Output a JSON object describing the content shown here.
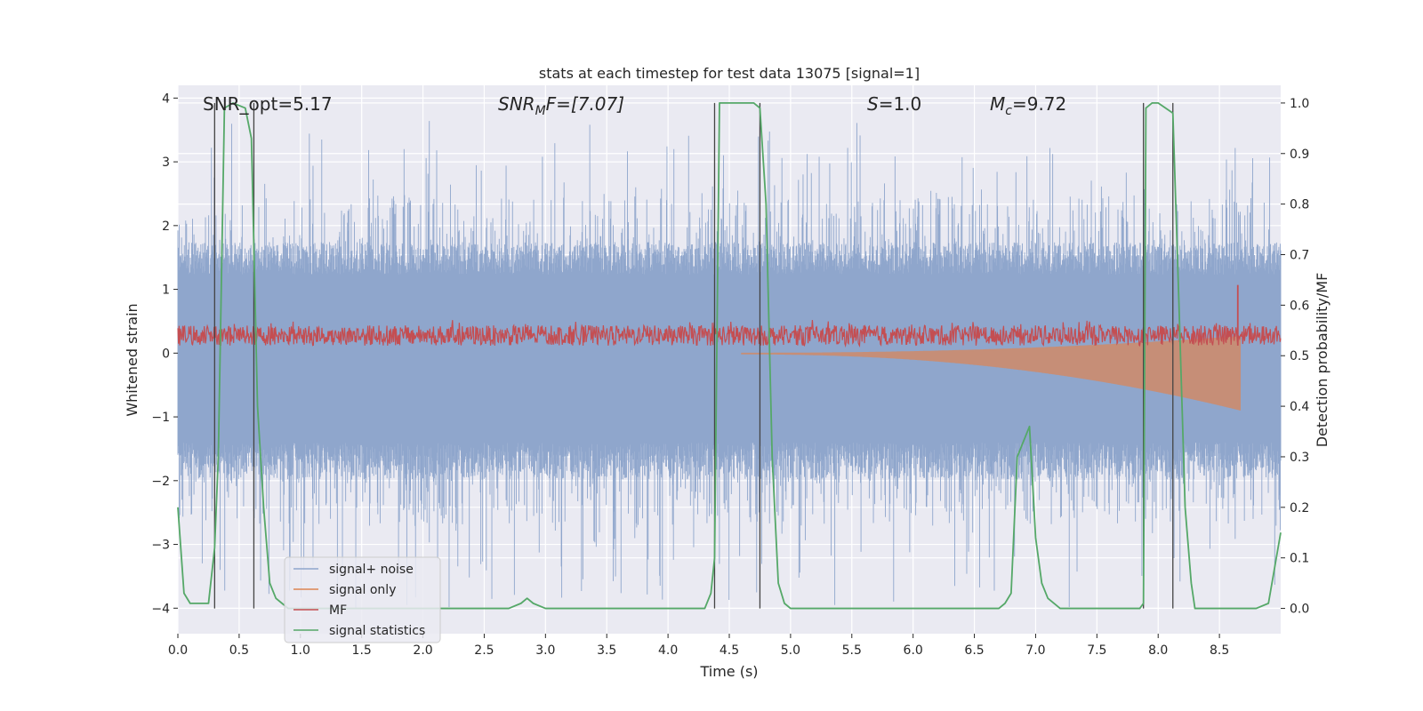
{
  "chart_data": {
    "type": "line",
    "title": "stats at each timestep for test data 13075 [signal=1]",
    "xlabel": "Time (s)",
    "ylabel": "Whitened strain",
    "y2label": "Detection probability/MF",
    "xlim": [
      0.0,
      9.0
    ],
    "ylim": [
      -4.4,
      4.2
    ],
    "y2lim": [
      -0.05,
      1.035
    ],
    "x_ticks": [
      "0.0",
      "0.5",
      "1.0",
      "1.5",
      "2.0",
      "2.5",
      "3.0",
      "3.5",
      "4.0",
      "4.5",
      "5.0",
      "5.5",
      "6.0",
      "6.5",
      "7.0",
      "7.5",
      "8.0",
      "8.5"
    ],
    "y_ticks": [
      "4",
      "3",
      "2",
      "1",
      "0",
      "−1",
      "−2",
      "−3",
      "−4"
    ],
    "y2_ticks": [
      "1.0",
      "0.9",
      "0.8",
      "0.7",
      "0.6",
      "0.5",
      "0.4",
      "0.3",
      "0.2",
      "0.1",
      "0.0"
    ],
    "grid": true,
    "legend_position": "lower-left",
    "annotations": {
      "snr_opt": "SNR_opt=5.17",
      "snr_mf_var": "SNR",
      "snr_mf_sub": "M",
      "snr_mf_rest": "F=[7.07]",
      "s_var": "S",
      "s_rest": "=1.0",
      "mc_var": "M",
      "mc_sub": "c",
      "mc_rest": "=9.72"
    },
    "colors": {
      "signal_noise": "#8fa6cc",
      "signal_only": "#dd8452",
      "mf": "#c44e52",
      "statistics": "#55a868",
      "background": "#eaeaf2",
      "grid": "#ffffff",
      "vline": "#444444"
    },
    "detection_window_lines": [
      0.3,
      0.62,
      4.38,
      4.75,
      7.88,
      8.12
    ],
    "series": [
      {
        "name": "signal+ noise",
        "axis": "left",
        "envelope": {
          "x_range": [
            0.0,
            9.0
          ],
          "upper_typical": 1.45,
          "lower_typical": -1.65,
          "upper_peak": 3.7,
          "lower_peak": -4.0
        }
      },
      {
        "name": "signal only",
        "axis": "left",
        "chirp": {
          "start": 4.6,
          "end": 8.67,
          "start_amplitude": 0.02,
          "end_amplitude": 0.9
        }
      },
      {
        "name": "MF",
        "axis": "right",
        "band": {
          "x_range": [
            0.0,
            9.0
          ],
          "low": 0.52,
          "high": 0.56,
          "peak_x": 8.65,
          "peak_y": 0.64
        }
      },
      {
        "name": "signal statistics",
        "axis": "right",
        "x": [
          0.0,
          0.05,
          0.1,
          0.2,
          0.25,
          0.3,
          0.33,
          0.38,
          0.45,
          0.55,
          0.6,
          0.65,
          0.7,
          0.75,
          0.8,
          0.85,
          0.9,
          1.0,
          2.5,
          2.7,
          2.8,
          2.85,
          2.9,
          3.0,
          4.3,
          4.35,
          4.38,
          4.42,
          4.5,
          4.7,
          4.75,
          4.8,
          4.85,
          4.9,
          4.95,
          5.0,
          6.7,
          6.75,
          6.8,
          6.85,
          6.95,
          7.0,
          7.05,
          7.1,
          7.2,
          7.3,
          7.85,
          7.88,
          7.9,
          7.95,
          8.0,
          8.12,
          8.17,
          8.22,
          8.27,
          8.3,
          8.4,
          8.7,
          8.8,
          8.9,
          9.0
        ],
        "values": [
          0.2,
          0.03,
          0.01,
          0.01,
          0.01,
          0.12,
          0.3,
          0.99,
          1.0,
          0.99,
          0.93,
          0.4,
          0.2,
          0.05,
          0.02,
          0.01,
          0.0,
          0.0,
          0.0,
          0.0,
          0.01,
          0.02,
          0.01,
          0.0,
          0.0,
          0.03,
          0.1,
          1.0,
          1.0,
          1.0,
          0.99,
          0.8,
          0.3,
          0.05,
          0.01,
          0.0,
          0.0,
          0.01,
          0.03,
          0.3,
          0.36,
          0.14,
          0.05,
          0.02,
          0.0,
          0.0,
          0.0,
          0.01,
          0.99,
          1.0,
          1.0,
          0.98,
          0.6,
          0.2,
          0.05,
          0.0,
          0.0,
          0.0,
          0.0,
          0.01,
          0.15
        ]
      }
    ]
  }
}
